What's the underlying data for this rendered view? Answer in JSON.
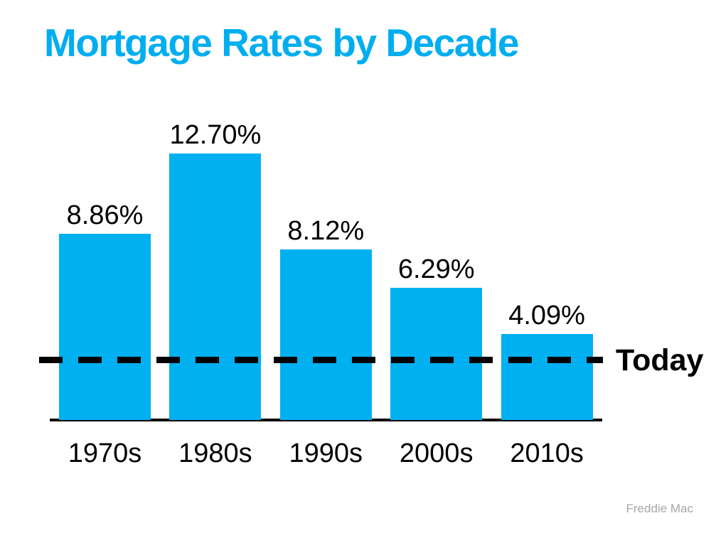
{
  "page": {
    "background_color": "#ffffff"
  },
  "title": {
    "text": "Mortgage Rates by Decade",
    "color": "#00AEEF"
  },
  "chart_data": {
    "type": "bar",
    "title": "Mortgage Rates by Decade",
    "categories": [
      "1970s",
      "1980s",
      "1990s",
      "2000s",
      "2010s"
    ],
    "values": [
      8.86,
      12.7,
      8.12,
      6.29,
      4.09
    ],
    "value_labels": [
      "8.86%",
      "12.70%",
      "8.12%",
      "6.29%",
      "4.09%"
    ],
    "bar_color": "#00B0F0",
    "label_color": "#000000",
    "xlabel": "",
    "ylabel": "",
    "ylim": [
      0,
      13.5
    ],
    "grid": false,
    "legend": false,
    "reference_line": {
      "label": "Today",
      "value": 2.85,
      "style": "dashed",
      "color": "#000000"
    },
    "axis_line_color": "#000000",
    "source": "Freddie Mac"
  },
  "footer": {
    "source_label": "Freddie Mac",
    "color": "#A6A6A6"
  }
}
